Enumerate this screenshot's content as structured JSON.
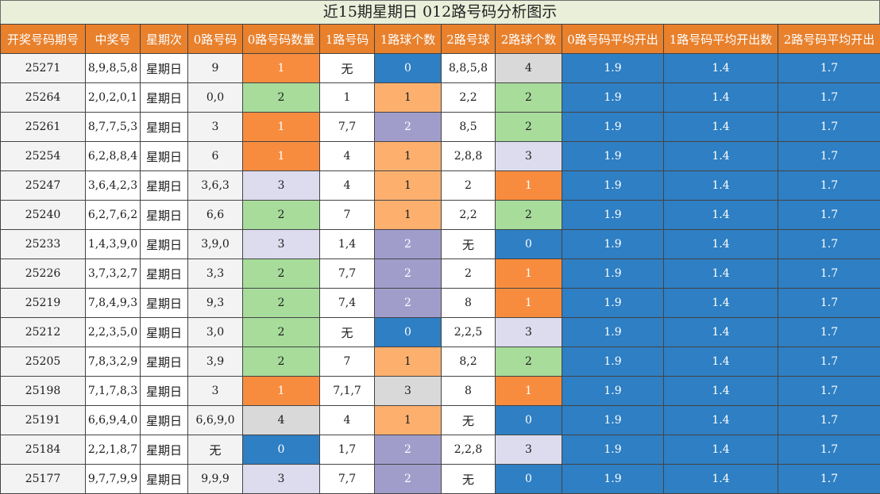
{
  "title": "近15期星期日 012路号码分析图示",
  "headers": [
    "开奖号码期号",
    "中奖号",
    "星期次",
    "0路号码",
    "0路号码数量",
    "1路号码",
    "1路球个数",
    "2路号球",
    "2路球个数",
    "0路号码平均开出",
    "1路号码平均开出数",
    "2路号码平均开出"
  ],
  "colors": {
    "header_bg": "#e8802c",
    "title_bg": "#e9efd9",
    "avg_bg": "#2e7fc3",
    "orange": "#f88c3e",
    "green": "#a7dc9b",
    "lavender": "#dcdcee",
    "blue": "#2e7fc3",
    "peach": "#fdb06e",
    "purple": "#a19dcb",
    "gray": "#d9d9d9"
  },
  "rows": [
    {
      "issue": "25271",
      "numbers": "8,9,8,5,8",
      "weekday": "星期日",
      "r0": "9",
      "r0_count": "1",
      "r0_color": "orange",
      "r1": "无",
      "r1_count": "0",
      "r1_color": "blue",
      "r2": "8,8,5,8",
      "r2_count": "4",
      "r2_color": "gray",
      "avg0": "1.9",
      "avg1": "1.4",
      "avg2": "1.7"
    },
    {
      "issue": "25264",
      "numbers": "2,0,2,0,1",
      "weekday": "星期日",
      "r0": "0,0",
      "r0_count": "2",
      "r0_color": "green",
      "r1": "1",
      "r1_count": "1",
      "r1_color": "peach",
      "r2": "2,2",
      "r2_count": "2",
      "r2_color": "green",
      "avg0": "1.9",
      "avg1": "1.4",
      "avg2": "1.7"
    },
    {
      "issue": "25261",
      "numbers": "8,7,7,5,3",
      "weekday": "星期日",
      "r0": "3",
      "r0_count": "1",
      "r0_color": "orange",
      "r1": "7,7",
      "r1_count": "2",
      "r1_color": "purple",
      "r2": "8,5",
      "r2_count": "2",
      "r2_color": "green",
      "avg0": "1.9",
      "avg1": "1.4",
      "avg2": "1.7"
    },
    {
      "issue": "25254",
      "numbers": "6,2,8,8,4",
      "weekday": "星期日",
      "r0": "6",
      "r0_count": "1",
      "r0_color": "orange",
      "r1": "4",
      "r1_count": "1",
      "r1_color": "peach",
      "r2": "2,8,8",
      "r2_count": "3",
      "r2_color": "lavender",
      "avg0": "1.9",
      "avg1": "1.4",
      "avg2": "1.7"
    },
    {
      "issue": "25247",
      "numbers": "3,6,4,2,3",
      "weekday": "星期日",
      "r0": "3,6,3",
      "r0_count": "3",
      "r0_color": "lavender",
      "r1": "4",
      "r1_count": "1",
      "r1_color": "peach",
      "r2": "2",
      "r2_count": "1",
      "r2_color": "orange",
      "avg0": "1.9",
      "avg1": "1.4",
      "avg2": "1.7"
    },
    {
      "issue": "25240",
      "numbers": "6,2,7,6,2",
      "weekday": "星期日",
      "r0": "6,6",
      "r0_count": "2",
      "r0_color": "green",
      "r1": "7",
      "r1_count": "1",
      "r1_color": "peach",
      "r2": "2,2",
      "r2_count": "2",
      "r2_color": "green",
      "avg0": "1.9",
      "avg1": "1.4",
      "avg2": "1.7"
    },
    {
      "issue": "25233",
      "numbers": "1,4,3,9,0",
      "weekday": "星期日",
      "r0": "3,9,0",
      "r0_count": "3",
      "r0_color": "lavender",
      "r1": "1,4",
      "r1_count": "2",
      "r1_color": "purple",
      "r2": "无",
      "r2_count": "0",
      "r2_color": "blue",
      "avg0": "1.9",
      "avg1": "1.4",
      "avg2": "1.7"
    },
    {
      "issue": "25226",
      "numbers": "3,7,3,2,7",
      "weekday": "星期日",
      "r0": "3,3",
      "r0_count": "2",
      "r0_color": "green",
      "r1": "7,7",
      "r1_count": "2",
      "r1_color": "purple",
      "r2": "2",
      "r2_count": "1",
      "r2_color": "orange",
      "avg0": "1.9",
      "avg1": "1.4",
      "avg2": "1.7"
    },
    {
      "issue": "25219",
      "numbers": "7,8,4,9,3",
      "weekday": "星期日",
      "r0": "9,3",
      "r0_count": "2",
      "r0_color": "green",
      "r1": "7,4",
      "r1_count": "2",
      "r1_color": "purple",
      "r2": "8",
      "r2_count": "1",
      "r2_color": "orange",
      "avg0": "1.9",
      "avg1": "1.4",
      "avg2": "1.7"
    },
    {
      "issue": "25212",
      "numbers": "2,2,3,5,0",
      "weekday": "星期日",
      "r0": "3,0",
      "r0_count": "2",
      "r0_color": "green",
      "r1": "无",
      "r1_count": "0",
      "r1_color": "blue",
      "r2": "2,2,5",
      "r2_count": "3",
      "r2_color": "lavender",
      "avg0": "1.9",
      "avg1": "1.4",
      "avg2": "1.7"
    },
    {
      "issue": "25205",
      "numbers": "7,8,3,2,9",
      "weekday": "星期日",
      "r0": "3,9",
      "r0_count": "2",
      "r0_color": "green",
      "r1": "7",
      "r1_count": "1",
      "r1_color": "peach",
      "r2": "8,2",
      "r2_count": "2",
      "r2_color": "green",
      "avg0": "1.9",
      "avg1": "1.4",
      "avg2": "1.7"
    },
    {
      "issue": "25198",
      "numbers": "7,1,7,8,3",
      "weekday": "星期日",
      "r0": "3",
      "r0_count": "1",
      "r0_color": "orange",
      "r1": "7,1,7",
      "r1_count": "3",
      "r1_color": "gray",
      "r2": "8",
      "r2_count": "1",
      "r2_color": "orange",
      "avg0": "1.9",
      "avg1": "1.4",
      "avg2": "1.7"
    },
    {
      "issue": "25191",
      "numbers": "6,6,9,4,0",
      "weekday": "星期日",
      "r0": "6,6,9,0",
      "r0_count": "4",
      "r0_color": "gray",
      "r1": "4",
      "r1_count": "1",
      "r1_color": "peach",
      "r2": "无",
      "r2_count": "0",
      "r2_color": "blue",
      "avg0": "1.9",
      "avg1": "1.4",
      "avg2": "1.7"
    },
    {
      "issue": "25184",
      "numbers": "2,2,1,8,7",
      "weekday": "星期日",
      "r0": "无",
      "r0_count": "0",
      "r0_color": "blue",
      "r1": "1,7",
      "r1_count": "2",
      "r1_color": "purple",
      "r2": "2,2,8",
      "r2_count": "3",
      "r2_color": "lavender",
      "avg0": "1.9",
      "avg1": "1.4",
      "avg2": "1.7"
    },
    {
      "issue": "25177",
      "numbers": "9,7,7,9,9",
      "weekday": "星期日",
      "r0": "9,9,9",
      "r0_count": "3",
      "r0_color": "lavender",
      "r1": "7,7",
      "r1_count": "2",
      "r1_color": "purple",
      "r2": "无",
      "r2_count": "0",
      "r2_color": "blue",
      "avg0": "1.9",
      "avg1": "1.4",
      "avg2": "1.7"
    }
  ]
}
